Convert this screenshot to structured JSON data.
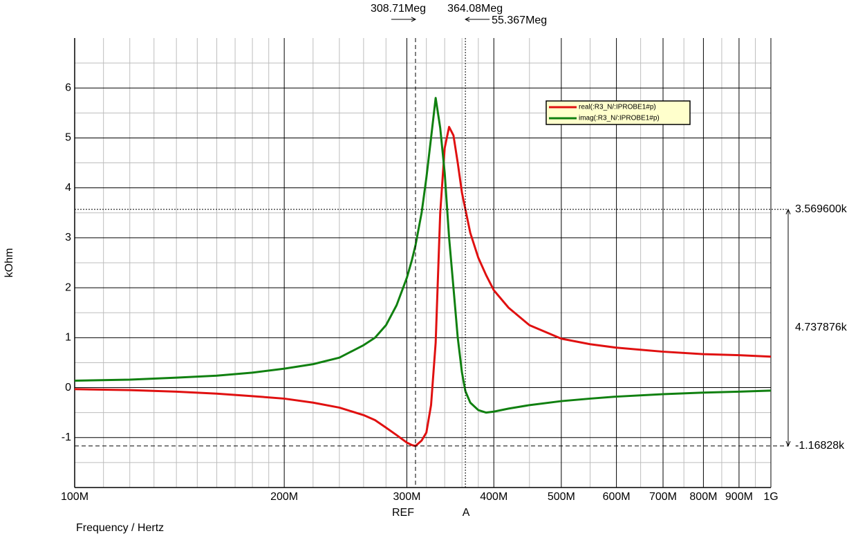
{
  "chart_data": {
    "type": "line",
    "x_label": "Frequency / Hertz",
    "y_label": "kOhm",
    "log_x": true,
    "grid": true,
    "legend": "upper-right",
    "xlim": [
      100000000,
      1000000000
    ],
    "ylim": [
      -2,
      7
    ],
    "xticks": [
      {
        "value": 100000000,
        "label": "100M"
      },
      {
        "value": 200000000,
        "label": "200M"
      },
      {
        "value": 300000000,
        "label": "300M"
      },
      {
        "value": 400000000,
        "label": "400M"
      },
      {
        "value": 500000000,
        "label": "500M"
      },
      {
        "value": 600000000,
        "label": "600M"
      },
      {
        "value": 700000000,
        "label": "700M"
      },
      {
        "value": 800000000,
        "label": "800M"
      },
      {
        "value": 900000000,
        "label": "900M"
      },
      {
        "value": 1000000000,
        "label": "1G"
      }
    ],
    "x_minor_ticks": [
      110000000,
      120000000,
      130000000,
      140000000,
      150000000,
      160000000,
      170000000,
      180000000,
      190000000,
      220000000,
      240000000,
      260000000,
      280000000,
      320000000,
      340000000,
      360000000,
      380000000,
      450000000,
      550000000,
      650000000,
      750000000,
      850000000,
      950000000
    ],
    "yticks": [
      -1,
      0,
      1,
      2,
      3,
      4,
      5,
      6
    ],
    "y_minor_ticks": [
      -1.5,
      -0.5,
      0.5,
      1.5,
      2.5,
      3.5,
      4.5,
      5.5,
      6.5
    ],
    "x": [
      100000000,
      120000000,
      140000000,
      160000000,
      180000000,
      200000000,
      220000000,
      240000000,
      260000000,
      270000000,
      280000000,
      290000000,
      300000000,
      305000000,
      308710000,
      315000000,
      320000000,
      325000000,
      330000000,
      335000000,
      340000000,
      345000000,
      350000000,
      355000000,
      360000000,
      364080000,
      370000000,
      380000000,
      390000000,
      400000000,
      420000000,
      450000000,
      500000000,
      550000000,
      600000000,
      700000000,
      800000000,
      900000000,
      1000000000
    ],
    "series": [
      {
        "name": "real(:R3_N/:IPROBE1#p)",
        "color": "#e01010",
        "values": [
          -0.03,
          -0.05,
          -0.08,
          -0.12,
          -0.17,
          -0.22,
          -0.3,
          -0.4,
          -0.55,
          -0.65,
          -0.8,
          -0.95,
          -1.1,
          -1.15,
          -1.168,
          -1.06,
          -0.9,
          -0.35,
          0.9,
          3.5,
          4.8,
          5.22,
          5.05,
          4.5,
          3.9,
          3.57,
          3.1,
          2.6,
          2.25,
          1.95,
          1.6,
          1.25,
          0.98,
          0.87,
          0.8,
          0.72,
          0.67,
          0.65,
          0.62
        ]
      },
      {
        "name": "imag(:R3_N/:IPROBE1#p)",
        "color": "#108010",
        "values": [
          0.14,
          0.16,
          0.2,
          0.24,
          0.3,
          0.38,
          0.47,
          0.6,
          0.85,
          1.0,
          1.25,
          1.65,
          2.2,
          2.55,
          2.85,
          3.5,
          4.2,
          5.0,
          5.8,
          5.2,
          4.3,
          3.0,
          2.0,
          1.0,
          0.3,
          -0.07,
          -0.3,
          -0.45,
          -0.5,
          -0.48,
          -0.42,
          -0.35,
          -0.27,
          -0.22,
          -0.18,
          -0.13,
          -0.1,
          -0.08,
          -0.06
        ]
      }
    ],
    "cursors": [
      {
        "name": "REF",
        "x": {
          "value": 308710000,
          "label": "308.71Meg"
        },
        "y": {
          "value": -1.16828,
          "label": "-1.16828k"
        }
      },
      {
        "name": "A",
        "x": {
          "value": 364080000,
          "label": "364.08Meg"
        },
        "y": {
          "value": 3.5696,
          "label": "3.569600k"
        }
      }
    ],
    "cursor_delta": {
      "x": {
        "value": 55367000,
        "label": "55.367Meg"
      },
      "y": {
        "value": 4.737876,
        "label": "4.737876k"
      }
    }
  }
}
